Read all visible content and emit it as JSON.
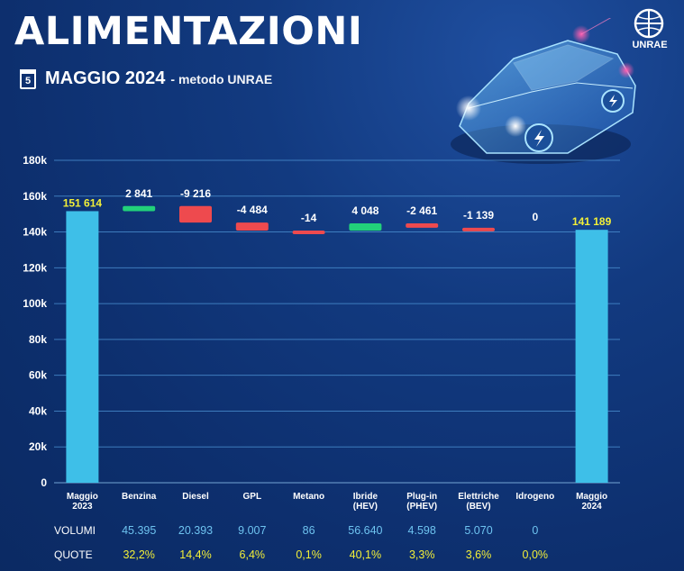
{
  "header": {
    "title": "ALIMENTAZIONI",
    "calendar_day": "5",
    "subtitle_main": "MAGGIO 2024",
    "subtitle_method": "- metodo UNRAE",
    "logo_text": "UNRAE"
  },
  "colors": {
    "total_bar": "#3ebfe8",
    "increase": "#22d17a",
    "decrease": "#ee4a4e",
    "total_label": "#f2ef38",
    "gridline": "#4a8fd0"
  },
  "chart_data": {
    "type": "waterfall",
    "ylim": [
      0,
      180000
    ],
    "yticks": [
      0,
      20000,
      40000,
      60000,
      80000,
      100000,
      120000,
      140000,
      160000,
      180000
    ],
    "ytick_labels": [
      "0",
      "20k",
      "40k",
      "60k",
      "80k",
      "100k",
      "120k",
      "140k",
      "160k",
      "180k"
    ],
    "grid": true,
    "categories": [
      [
        "Maggio",
        "2023"
      ],
      [
        "Benzina"
      ],
      [
        "Diesel"
      ],
      [
        "GPL"
      ],
      [
        "Metano"
      ],
      [
        "Ibride",
        "(HEV)"
      ],
      [
        "Plug-in",
        "(PHEV)"
      ],
      [
        "Elettriche",
        "(BEV)"
      ],
      [
        "Idrogeno"
      ],
      [
        "Maggio",
        "2024"
      ]
    ],
    "kinds": [
      "total",
      "delta",
      "delta",
      "delta",
      "delta",
      "delta",
      "delta",
      "delta",
      "delta",
      "total"
    ],
    "values": [
      151614,
      2841,
      -9216,
      -4484,
      -14,
      4048,
      -2461,
      -1139,
      0,
      141189
    ],
    "labels": [
      "151 614",
      "2 841",
      "-9 216",
      "-4 484",
      "-14",
      "4 048",
      "-2 461",
      "-1 139",
      "0",
      "141 189"
    ]
  },
  "table": {
    "volumi_label": "VOLUMI",
    "quote_label": "QUOTE",
    "volumi": [
      "45.395",
      "20.393",
      "9.007",
      "86",
      "56.640",
      "4.598",
      "5.070",
      "0"
    ],
    "quote": [
      "32,2%",
      "14,4%",
      "6,4%",
      "0,1%",
      "40,1%",
      "3,3%",
      "3,6%",
      "0,0%"
    ]
  }
}
